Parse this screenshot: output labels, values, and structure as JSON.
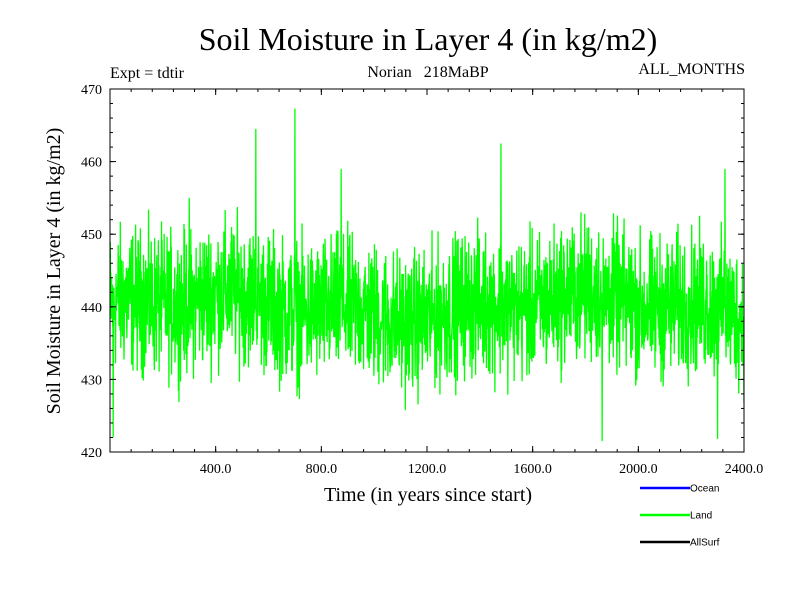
{
  "chart_data": {
    "type": "line",
    "title": "Soil Moisture in Layer 4 (in kg/m2)",
    "experiment": "Expt = tdtir",
    "period": "Norian   218MaBP",
    "months": "ALL_MONTHS",
    "xlabel": "Time (in years since start)",
    "ylabel": "Soil Moisture in Layer 4 (in kg/m2)",
    "xlim": [
      0,
      2400
    ],
    "ylim": [
      420,
      470
    ],
    "xticks": [
      400,
      800,
      1200,
      1600,
      2000,
      2400
    ],
    "xtick_labels": [
      "400.0",
      "800.0",
      "1200.0",
      "1600.0",
      "2000.0",
      "2400.0"
    ],
    "yticks": [
      420,
      430,
      440,
      450,
      460,
      470
    ],
    "ytick_labels": [
      "420",
      "430",
      "440",
      "450",
      "460",
      "470"
    ],
    "series": [
      {
        "name": "Ocean",
        "color": "#0000ff",
        "values": []
      },
      {
        "name": "Land",
        "color": "#00ff00",
        "mean": 440,
        "typical_min": 428,
        "typical_max": 452,
        "observed_min": 421.5,
        "observed_max": 467.3,
        "peaks": [
          [
            300,
            455
          ],
          [
            552,
            464.5
          ],
          [
            700,
            467.3
          ],
          [
            875,
            459
          ],
          [
            1480,
            462.5
          ],
          [
            2328,
            459
          ]
        ],
        "troughs": [
          [
            12,
            422
          ],
          [
            1863,
            421.5
          ],
          [
            2300,
            421.8
          ]
        ]
      },
      {
        "name": "AllSurf",
        "color": "#000000",
        "values": []
      }
    ],
    "legend": [
      "Ocean",
      "Land",
      "AllSurf"
    ]
  }
}
